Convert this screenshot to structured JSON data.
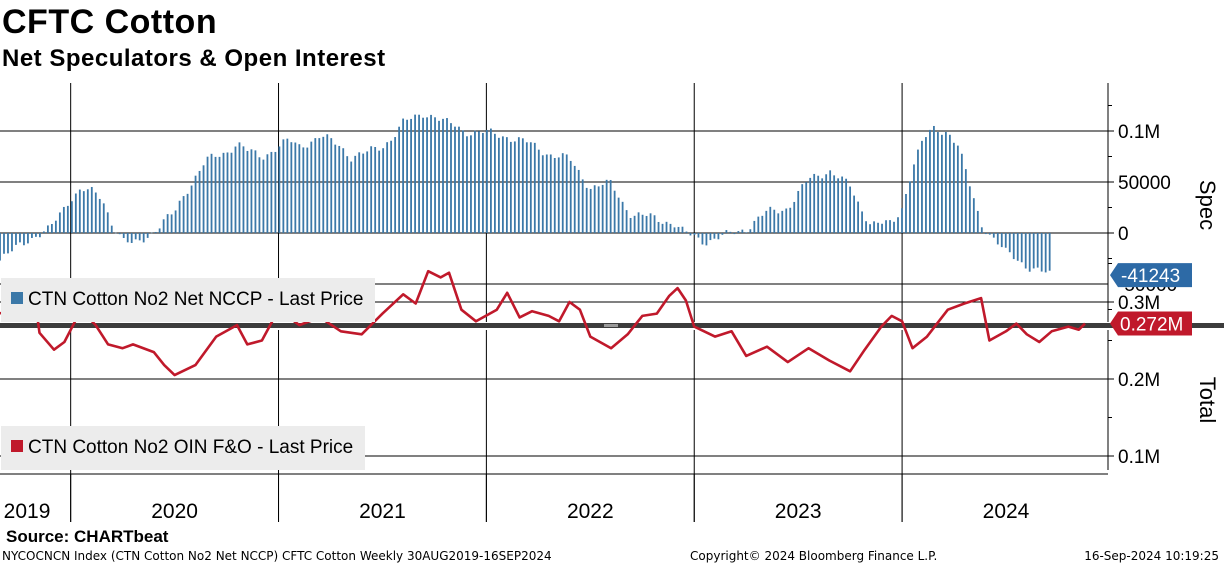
{
  "header": {
    "title": "CFTC Cotton",
    "subtitle": "Net Speculators & Open Interest"
  },
  "footer": {
    "source": "Source: CHARTbeat",
    "ticker_info": "NYCOCNCN Index (CTN Cotton No2 Net NCCP) CFTC Cotton  Weekly 30AUG2019-16SEP2024",
    "copyright": "Copyright© 2024 Bloomberg Finance L.P.",
    "timestamp": "16-Sep-2024 10:19:25"
  },
  "colors": {
    "bar": "#3b78a8",
    "line": "#c0192b",
    "grid": "#000000",
    "legend_bg": "#ececec",
    "divider": "#3c3c3c"
  },
  "chart_data": [
    {
      "type": "bar",
      "panel": "top",
      "title": "Net Speculators",
      "ylabel": "Spec",
      "ylim": [
        -80000,
        150000
      ],
      "yticks": [
        0,
        50000,
        100000
      ],
      "ytick_labels": [
        "0",
        "50000",
        "0.1M"
      ],
      "hidden_tick_label": "-50000",
      "last_value": -41243,
      "last_value_label": "-41243",
      "legend": "CTN Cotton No2 Net NCCP - Last Price",
      "series": [
        {
          "name": "CTN Cotton No2 Net NCCP",
          "start_year": 2019.66,
          "end_year": 2024.71,
          "anchors": [
            [
              2019.66,
              -27000
            ],
            [
              2019.7,
              -22000
            ],
            [
              2019.75,
              -12000
            ],
            [
              2019.8,
              -5000
            ],
            [
              2019.85,
              -2000
            ],
            [
              2019.9,
              3000
            ],
            [
              2019.95,
              20000
            ],
            [
              2020.0,
              35000
            ],
            [
              2020.05,
              42000
            ],
            [
              2020.1,
              40000
            ],
            [
              2020.15,
              35000
            ],
            [
              2020.2,
              10000
            ],
            [
              2020.25,
              -8000
            ],
            [
              2020.3,
              -12000
            ],
            [
              2020.35,
              -5000
            ],
            [
              2020.42,
              5000
            ],
            [
              2020.5,
              20000
            ],
            [
              2020.55,
              40000
            ],
            [
              2020.6,
              55000
            ],
            [
              2020.65,
              70000
            ],
            [
              2020.75,
              80000
            ],
            [
              2020.8,
              88000
            ],
            [
              2020.85,
              80000
            ],
            [
              2020.92,
              75000
            ],
            [
              2021.0,
              85000
            ],
            [
              2021.05,
              90000
            ],
            [
              2021.1,
              85000
            ],
            [
              2021.2,
              95000
            ],
            [
              2021.3,
              85000
            ],
            [
              2021.35,
              75000
            ],
            [
              2021.42,
              78000
            ],
            [
              2021.5,
              85000
            ],
            [
              2021.55,
              95000
            ],
            [
              2021.6,
              108000
            ],
            [
              2021.65,
              112000
            ],
            [
              2021.7,
              118000
            ],
            [
              2021.75,
              115000
            ],
            [
              2021.8,
              108000
            ],
            [
              2021.85,
              105000
            ],
            [
              2021.9,
              100000
            ],
            [
              2022.0,
              98000
            ],
            [
              2022.1,
              95000
            ],
            [
              2022.2,
              88000
            ],
            [
              2022.3,
              78000
            ],
            [
              2022.4,
              72000
            ],
            [
              2022.5,
              45000
            ],
            [
              2022.6,
              48000
            ],
            [
              2022.65,
              32000
            ],
            [
              2022.7,
              18000
            ],
            [
              2022.8,
              15000
            ],
            [
              2022.9,
              10000
            ],
            [
              2022.95,
              0
            ],
            [
              2023.05,
              -8000
            ],
            [
              2023.15,
              -3000
            ],
            [
              2023.25,
              5000
            ],
            [
              2023.35,
              20000
            ],
            [
              2023.45,
              25000
            ],
            [
              2023.55,
              52000
            ],
            [
              2023.65,
              62000
            ],
            [
              2023.75,
              45000
            ],
            [
              2023.8,
              25000
            ],
            [
              2023.85,
              10000
            ],
            [
              2023.95,
              8000
            ],
            [
              2024.0,
              25000
            ],
            [
              2024.05,
              65000
            ],
            [
              2024.1,
              90000
            ],
            [
              2024.15,
              102000
            ],
            [
              2024.22,
              100000
            ],
            [
              2024.27,
              85000
            ],
            [
              2024.32,
              50000
            ],
            [
              2024.38,
              10000
            ],
            [
              2024.45,
              -8000
            ],
            [
              2024.5,
              -20000
            ],
            [
              2024.55,
              -25000
            ],
            [
              2024.6,
              -32000
            ],
            [
              2024.66,
              -38000
            ],
            [
              2024.71,
              -41243
            ]
          ]
        }
      ]
    },
    {
      "type": "line",
      "panel": "bottom",
      "title": "Open Interest",
      "ylabel": "Total",
      "ylim": [
        75000,
        340000
      ],
      "yticks": [
        100000,
        200000,
        300000
      ],
      "ytick_labels": [
        "0.1M",
        "0.2M",
        "0.3M"
      ],
      "last_value": 272000,
      "last_value_label": "0.272M",
      "legend": "CTN Cotton No2 OIN F&O - Last Price",
      "series": [
        {
          "name": "CTN Cotton No2 OIN F&O",
          "points": [
            [
              2019.66,
              285000
            ],
            [
              2019.74,
              295000
            ],
            [
              2019.83,
              300000
            ],
            [
              2019.85,
              260000
            ],
            [
              2019.92,
              238000
            ],
            [
              2019.97,
              248000
            ],
            [
              2020.05,
              290000
            ],
            [
              2020.12,
              270000
            ],
            [
              2020.18,
              245000
            ],
            [
              2020.25,
              240000
            ],
            [
              2020.3,
              245000
            ],
            [
              2020.4,
              235000
            ],
            [
              2020.45,
              218000
            ],
            [
              2020.5,
              205000
            ],
            [
              2020.6,
              218000
            ],
            [
              2020.7,
              255000
            ],
            [
              2020.8,
              270000
            ],
            [
              2020.85,
              245000
            ],
            [
              2020.92,
              250000
            ],
            [
              2021.0,
              290000
            ],
            [
              2021.1,
              270000
            ],
            [
              2021.2,
              280000
            ],
            [
              2021.3,
              262000
            ],
            [
              2021.4,
              258000
            ],
            [
              2021.5,
              285000
            ],
            [
              2021.6,
              310000
            ],
            [
              2021.66,
              298000
            ],
            [
              2021.72,
              340000
            ],
            [
              2021.78,
              332000
            ],
            [
              2021.82,
              338000
            ],
            [
              2021.88,
              290000
            ],
            [
              2021.95,
              275000
            ],
            [
              2022.05,
              290000
            ],
            [
              2022.1,
              312000
            ],
            [
              2022.16,
              280000
            ],
            [
              2022.22,
              288000
            ],
            [
              2022.3,
              282000
            ],
            [
              2022.35,
              275000
            ],
            [
              2022.4,
              300000
            ],
            [
              2022.45,
              290000
            ],
            [
              2022.5,
              255000
            ],
            [
              2022.6,
              240000
            ],
            [
              2022.68,
              258000
            ],
            [
              2022.75,
              282000
            ],
            [
              2022.82,
              285000
            ],
            [
              2022.88,
              308000
            ],
            [
              2022.92,
              318000
            ],
            [
              2022.96,
              302000
            ],
            [
              2023.0,
              268000
            ],
            [
              2023.1,
              255000
            ],
            [
              2023.18,
              262000
            ],
            [
              2023.25,
              230000
            ],
            [
              2023.35,
              242000
            ],
            [
              2023.45,
              222000
            ],
            [
              2023.55,
              240000
            ],
            [
              2023.65,
              224000
            ],
            [
              2023.75,
              210000
            ],
            [
              2023.82,
              238000
            ],
            [
              2023.9,
              268000
            ],
            [
              2023.95,
              282000
            ],
            [
              2024.0,
              275000
            ],
            [
              2024.05,
              240000
            ],
            [
              2024.12,
              255000
            ],
            [
              2024.22,
              290000
            ],
            [
              2024.3,
              298000
            ],
            [
              2024.38,
              305000
            ],
            [
              2024.42,
              250000
            ],
            [
              2024.5,
              262000
            ],
            [
              2024.55,
              272000
            ],
            [
              2024.6,
              258000
            ],
            [
              2024.66,
              248000
            ],
            [
              2024.72,
              262000
            ],
            [
              2024.8,
              268000
            ],
            [
              2024.85,
              264000
            ],
            [
              2024.88,
              272000
            ]
          ]
        }
      ]
    }
  ],
  "x_axis": {
    "year_labels": [
      "2019",
      "2020",
      "2021",
      "2022",
      "2023",
      "2024"
    ],
    "year_label_positions": [
      2019.79,
      2020.5,
      2021.5,
      2022.5,
      2023.5,
      2024.5
    ],
    "gridline_years": [
      2020,
      2021,
      2022,
      2023,
      2024
    ]
  }
}
